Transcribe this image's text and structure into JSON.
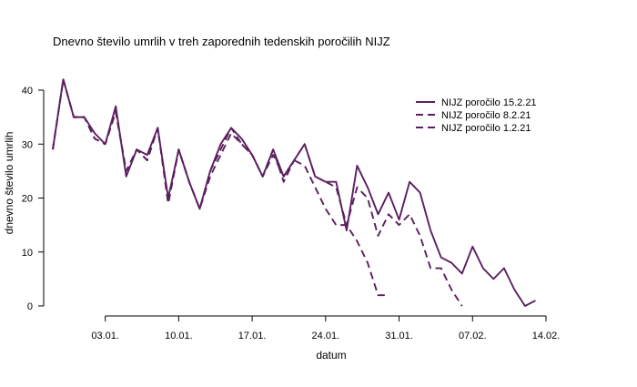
{
  "chart_data": {
    "type": "line",
    "title": "Dnevno število umrlih v treh zaporednih tedenskih poročilih NIJZ",
    "xlabel": "datum",
    "ylabel": "dnevno število umrlih",
    "x_start": "2020-12-29",
    "x_end": "2021-02-14",
    "xlim": [
      "2020-12-29",
      "2021-02-14"
    ],
    "ylim": [
      0,
      44
    ],
    "x_ticks": [
      {
        "date": "2021-01-03",
        "label": "03.01."
      },
      {
        "date": "2021-01-10",
        "label": "10.01."
      },
      {
        "date": "2021-01-17",
        "label": "17.01."
      },
      {
        "date": "2021-01-24",
        "label": "24.01."
      },
      {
        "date": "2021-01-31",
        "label": "31.01."
      },
      {
        "date": "2021-02-07",
        "label": "07.02."
      },
      {
        "date": "2021-02-14",
        "label": "14.02."
      }
    ],
    "y_ticks": [
      0,
      10,
      20,
      30,
      40
    ],
    "grid": false,
    "legend_position": "top-right",
    "color": "#5b1f5f",
    "series": [
      {
        "name": "NIJZ poročilo 15.2.21",
        "line_style": "solid",
        "values": [
          29,
          42,
          35,
          35,
          32,
          30,
          37,
          24,
          29,
          28,
          33,
          20,
          29,
          23,
          18,
          25,
          30,
          33,
          31,
          28,
          24,
          29,
          24,
          27,
          30,
          24,
          23,
          23,
          14,
          26,
          22,
          17,
          21,
          16,
          23,
          21,
          14,
          9,
          8,
          6,
          11,
          7,
          5,
          7,
          3,
          0,
          1
        ]
      },
      {
        "name": "NIJZ poročilo 8.2.21",
        "line_style": "dashed",
        "values": [
          29,
          42,
          35,
          35,
          31,
          30,
          36,
          25,
          29,
          27,
          33,
          19,
          29,
          23,
          18,
          25,
          29,
          33,
          30,
          28,
          24,
          29,
          23,
          27,
          30,
          24,
          23,
          22,
          15,
          22,
          20,
          13,
          17,
          15,
          17,
          13,
          7,
          7,
          3,
          0
        ]
      },
      {
        "name": "NIJZ poročilo 1.2.21",
        "line_style": "dashed",
        "values": [
          29,
          42,
          35,
          35,
          31,
          30,
          36,
          25,
          29,
          27,
          33,
          19,
          29,
          23,
          18,
          24,
          28,
          32,
          30,
          28,
          24,
          28,
          24,
          27,
          26,
          22,
          18,
          15,
          15,
          12,
          8,
          2,
          2
        ]
      }
    ]
  }
}
